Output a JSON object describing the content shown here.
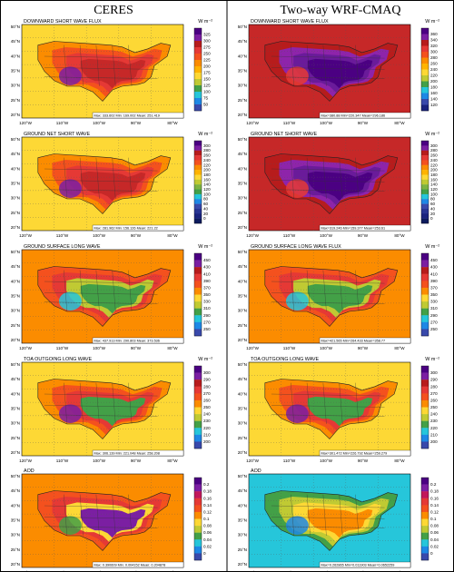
{
  "columns": [
    {
      "title": "CERES"
    },
    {
      "title": "Two-way WRF-CMAQ"
    }
  ],
  "axis": {
    "lat_labels": [
      "50°N",
      "45°N",
      "40°N",
      "35°N",
      "30°N",
      "25°N",
      "20°N"
    ],
    "lon_labels": [
      "120°W",
      "110°W",
      "100°W",
      "90°W",
      "80°W"
    ]
  },
  "rows": [
    {
      "key": "dswf",
      "panels": [
        {
          "title": "DOWNWARD SHORT WAVE FLUX",
          "units": "W m⁻²",
          "stats": "Max: 333.602  Min: 169.002  Mean: 251.419",
          "theme": "sw_high"
        },
        {
          "title": "DOWNWARD SHORT WAVE FLUX",
          "units": "W m⁻²",
          "stats": "Max=380.88 Min=220.347 Mean=296.186",
          "theme": "sw_vhigh"
        }
      ],
      "colorbar": {
        "left": {
          "labels": [
            "325",
            "300",
            "275",
            "250",
            "225",
            "200",
            "175",
            "150",
            "125",
            "100",
            "75",
            "50"
          ],
          "colors": [
            "#4b0082",
            "#7b1fa2",
            "#b71c1c",
            "#e53935",
            "#f4511e",
            "#fb8c00",
            "#ffb300",
            "#fdd835",
            "#c0ca33",
            "#43a047",
            "#26c6da",
            "#1e88e5",
            "#3949ab"
          ]
        },
        "right": {
          "labels": [
            "360",
            "340",
            "320",
            "300",
            "280",
            "260",
            "240",
            "220",
            "200",
            "180",
            "160",
            "140",
            "120"
          ],
          "colors": [
            "#4b0082",
            "#7b1fa2",
            "#b71c1c",
            "#e53935",
            "#f4511e",
            "#fb8c00",
            "#ffb300",
            "#fdd835",
            "#c0ca33",
            "#43a047",
            "#26c6da",
            "#1e88e5",
            "#3949ab",
            "#1a237e"
          ]
        }
      }
    },
    {
      "key": "gnsw",
      "panels": [
        {
          "title": "GROUND NET SHORT WAVE",
          "units": "W m⁻²",
          "stats": "Max: 281.962  Min: 156.126  Mean: 221.22",
          "theme": "sw_high"
        },
        {
          "title": "GROUND NET SHORT WAVE",
          "units": "W m⁻²",
          "stats": "Max=319.246 Min=159.377 Mean=253.61",
          "theme": "sw_vhigh"
        }
      ],
      "colorbar": {
        "left": {
          "labels": [
            "300",
            "280",
            "260",
            "240",
            "220",
            "200",
            "180",
            "160",
            "140",
            "120",
            "100",
            "80",
            "60",
            "40",
            "20",
            "0"
          ],
          "colors": [
            "#4b0082",
            "#7b1fa2",
            "#b71c1c",
            "#e53935",
            "#f4511e",
            "#fb8c00",
            "#ffb300",
            "#fdd835",
            "#c0ca33",
            "#7cb342",
            "#43a047",
            "#26c6da",
            "#1e88e5",
            "#3949ab",
            "#283593",
            "#1a237e",
            "#0d1b5e"
          ]
        },
        "right": {
          "labels": [
            "300",
            "280",
            "260",
            "240",
            "220",
            "200",
            "180",
            "160",
            "140",
            "120",
            "100",
            "80",
            "60",
            "40",
            "20",
            "0"
          ],
          "colors": [
            "#4b0082",
            "#7b1fa2",
            "#b71c1c",
            "#e53935",
            "#f4511e",
            "#fb8c00",
            "#ffb300",
            "#fdd835",
            "#c0ca33",
            "#7cb342",
            "#43a047",
            "#26c6da",
            "#1e88e5",
            "#3949ab",
            "#283593",
            "#1a237e",
            "#0d1b5e"
          ]
        }
      }
    },
    {
      "key": "gslw",
      "panels": [
        {
          "title": "GROUND SURFACE LONG WAVE",
          "units": "W m⁻²",
          "stats": "Max: 437.913  Min: 290.803  Mean: 373.536",
          "theme": "lw_ground"
        },
        {
          "title": "GROUND SURFACE LONG WAVE FLUX",
          "units": "W m⁻²",
          "stats": "Max=421.565 Min=264.433 Mean=358.77",
          "theme": "lw_ground"
        }
      ],
      "colorbar": {
        "left": {
          "labels": [
            "450",
            "430",
            "410",
            "390",
            "370",
            "350",
            "330",
            "310",
            "290",
            "270",
            "250"
          ],
          "colors": [
            "#4b0082",
            "#7b1fa2",
            "#b71c1c",
            "#e53935",
            "#f4511e",
            "#fb8c00",
            "#fdd835",
            "#c0ca33",
            "#43a047",
            "#26c6da",
            "#1e88e5",
            "#3949ab"
          ]
        },
        "right": {
          "labels": [
            "450",
            "430",
            "410",
            "390",
            "370",
            "350",
            "330",
            "310",
            "290",
            "270",
            "250"
          ],
          "colors": [
            "#4b0082",
            "#7b1fa2",
            "#b71c1c",
            "#e53935",
            "#f4511e",
            "#fb8c00",
            "#fdd835",
            "#c0ca33",
            "#43a047",
            "#26c6da",
            "#1e88e5",
            "#3949ab"
          ]
        }
      }
    },
    {
      "key": "toa",
      "panels": [
        {
          "title": "TOA OUTGOING LONG WAVE",
          "units": "W m⁻²",
          "stats": "Max: 306.139  Min: 221.048  Mean: 258.208",
          "theme": "toa"
        },
        {
          "title": "TOA OUTGOING LONG WAVE",
          "units": "W m⁻²",
          "stats": "Max=301.472 Min=226.792 Mean=259.279",
          "theme": "toa"
        }
      ],
      "colorbar": {
        "left": {
          "labels": [
            "300",
            "290",
            "280",
            "270",
            "260",
            "250",
            "240",
            "230",
            "220",
            "210",
            "200"
          ],
          "colors": [
            "#4b0082",
            "#7b1fa2",
            "#b71c1c",
            "#e53935",
            "#f4511e",
            "#fb8c00",
            "#fdd835",
            "#c0ca33",
            "#43a047",
            "#26c6da",
            "#1e88e5",
            "#3949ab"
          ]
        },
        "right": {
          "labels": [
            "300",
            "290",
            "280",
            "270",
            "260",
            "250",
            "240",
            "230",
            "220",
            "210",
            "200"
          ],
          "colors": [
            "#4b0082",
            "#7b1fa2",
            "#b71c1c",
            "#e53935",
            "#f4511e",
            "#fb8c00",
            "#fdd835",
            "#c0ca33",
            "#43a047",
            "#26c6da",
            "#1e88e5",
            "#3949ab"
          ]
        }
      }
    },
    {
      "key": "aod",
      "panels": [
        {
          "title": "AOD",
          "units": "",
          "stats": "Max: 0.390609  Min: 0.004152  Mean: 0.204878",
          "theme": "aod_ceres"
        },
        {
          "title": "AOD",
          "units": "",
          "stats": "Max=0.262865 Min=0.011903 Mean=0.0652259",
          "theme": "aod_wrf"
        }
      ],
      "colorbar": {
        "left": {
          "labels": [
            "0.2",
            "0.18",
            "0.16",
            "0.14",
            "0.12",
            "0.1",
            "0.08",
            "0.06",
            "0.04",
            "0.02",
            "0"
          ],
          "colors": [
            "#4b0082",
            "#7b1fa2",
            "#c2185b",
            "#e53935",
            "#f4511e",
            "#fb8c00",
            "#fdd835",
            "#c0ca33",
            "#43a047",
            "#26c6da",
            "#1e88e5",
            "#3949ab"
          ]
        },
        "right": {
          "labels": [
            "0.2",
            "0.18",
            "0.16",
            "0.14",
            "0.12",
            "0.1",
            "0.08",
            "0.06",
            "0.04",
            "0.02",
            "0"
          ],
          "colors": [
            "#4b0082",
            "#7b1fa2",
            "#c2185b",
            "#e53935",
            "#f4511e",
            "#fb8c00",
            "#fdd835",
            "#c0ca33",
            "#43a047",
            "#26c6da",
            "#1e88e5",
            "#3949ab"
          ]
        }
      }
    }
  ]
}
